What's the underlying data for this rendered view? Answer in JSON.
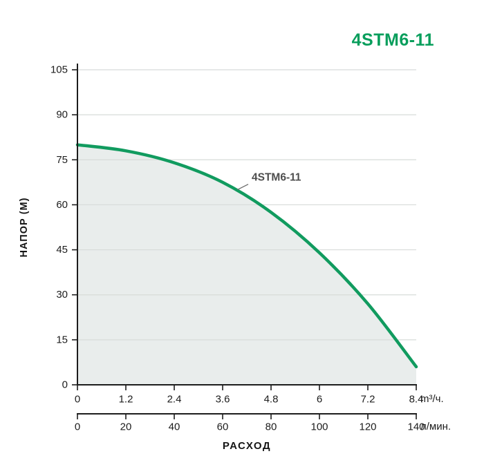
{
  "header": {
    "title": "4STM6-11"
  },
  "chart_data": {
    "type": "line",
    "title": "4STM6-11",
    "xlabel": "РАСХОД",
    "ylabel": "НАПОР (М)",
    "xlim": [
      0,
      8.4
    ],
    "ylim": [
      0,
      105
    ],
    "grid": "horizontal",
    "legend_position": "none",
    "y_ticks": {
      "values": [
        0,
        15,
        30,
        45,
        60,
        75,
        90,
        105
      ],
      "labels": [
        "0",
        "15",
        "30",
        "45",
        "60",
        "75",
        "90",
        "105"
      ]
    },
    "x_axis_primary": {
      "unit": "m³/ч.",
      "values": [
        0,
        1.2,
        2.4,
        3.6,
        4.8,
        6,
        7.2,
        8.4
      ],
      "labels": [
        "0",
        "1.2",
        "2.4",
        "3.6",
        "4.8",
        "6",
        "7.2",
        "8.4"
      ],
      "max": 8.4
    },
    "x_axis_secondary": {
      "unit": "л/мин.",
      "values": [
        0,
        20,
        40,
        60,
        80,
        100,
        120,
        140
      ],
      "labels": [
        "0",
        "20",
        "40",
        "60",
        "80",
        "100",
        "120",
        "140"
      ],
      "max": 140
    },
    "series": [
      {
        "name": "4STM6-11",
        "x": [
          0,
          1.2,
          2.4,
          3.6,
          4.8,
          6.0,
          7.2,
          8.4
        ],
        "values": [
          80,
          78,
          74,
          67.5,
          57.5,
          44,
          27,
          6
        ]
      }
    ],
    "annotation": {
      "text": "4STM6-11",
      "label_x": 4.32,
      "label_y": 68,
      "attach_x": 3.95
    },
    "colors": {
      "curve": "#119b5f",
      "area_fill": "#e9edec",
      "grid": "#d7dbd9",
      "axis": "#1c1c1c",
      "tick_text": "#1c1c1c",
      "title": "#089e5c",
      "annotation": "#4d4d4d",
      "leader_line": "#6a6a6a"
    }
  }
}
